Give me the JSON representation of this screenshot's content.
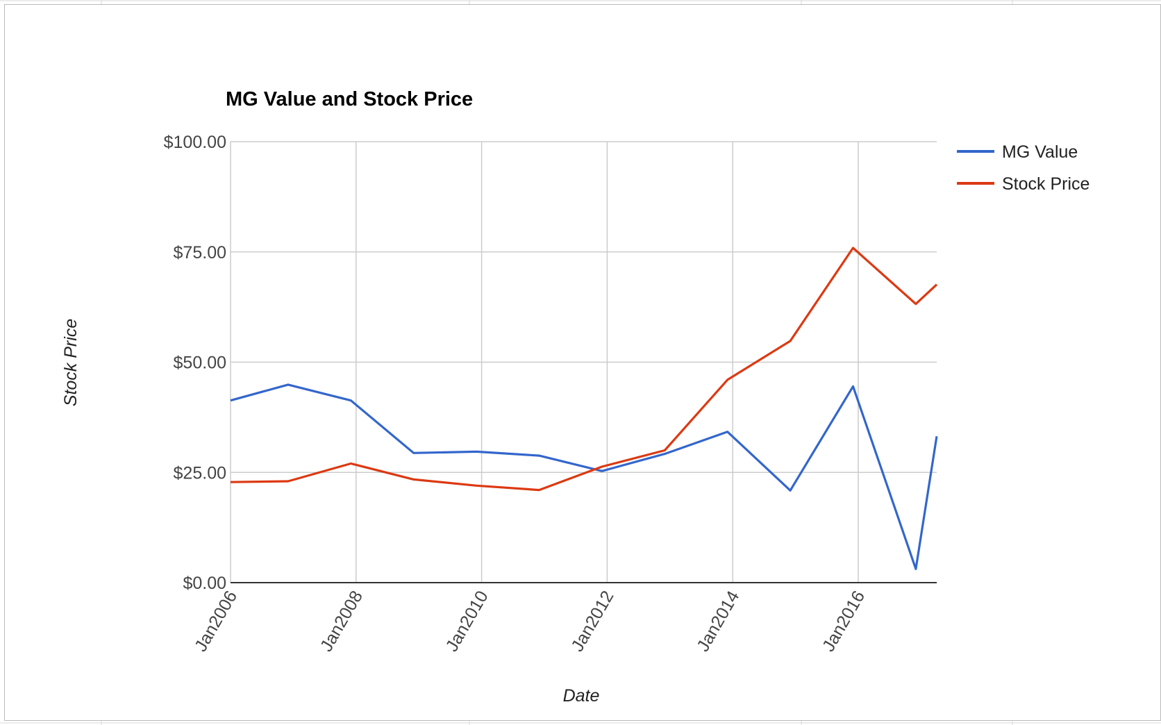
{
  "chart_data": {
    "type": "line",
    "title": "MG Value and Stock Price",
    "xlabel": "Date",
    "ylabel": "Stock Price",
    "ylim": [
      0,
      100
    ],
    "xlim": [
      "2006-01",
      "2017-04"
    ],
    "y_ticks": [
      "$0.00",
      "$25.00",
      "$50.00",
      "$75.00",
      "$100.00"
    ],
    "x_ticks": [
      "Jan2006",
      "Jan2008",
      "Jan2010",
      "Jan2012",
      "Jan2014",
      "Jan2016"
    ],
    "grid": true,
    "legend_position": "right",
    "x": [
      "2006-01",
      "2006-12",
      "2007-12",
      "2008-12",
      "2009-12",
      "2010-12",
      "2011-12",
      "2012-12",
      "2013-12",
      "2014-12",
      "2015-12",
      "2016-12",
      "2017-04"
    ],
    "series": [
      {
        "name": "MG Value",
        "color": "#3366cc",
        "values": [
          41.3,
          44.9,
          41.3,
          29.4,
          29.7,
          28.8,
          25.3,
          29.2,
          34.2,
          20.9,
          44.5,
          3.1,
          33.2
        ]
      },
      {
        "name": "Stock Price",
        "color": "#dc3912",
        "values": [
          22.8,
          23.0,
          27.0,
          23.4,
          22.0,
          21.0,
          26.3,
          30.0,
          46.0,
          54.8,
          75.9,
          63.2,
          67.6
        ]
      }
    ]
  }
}
